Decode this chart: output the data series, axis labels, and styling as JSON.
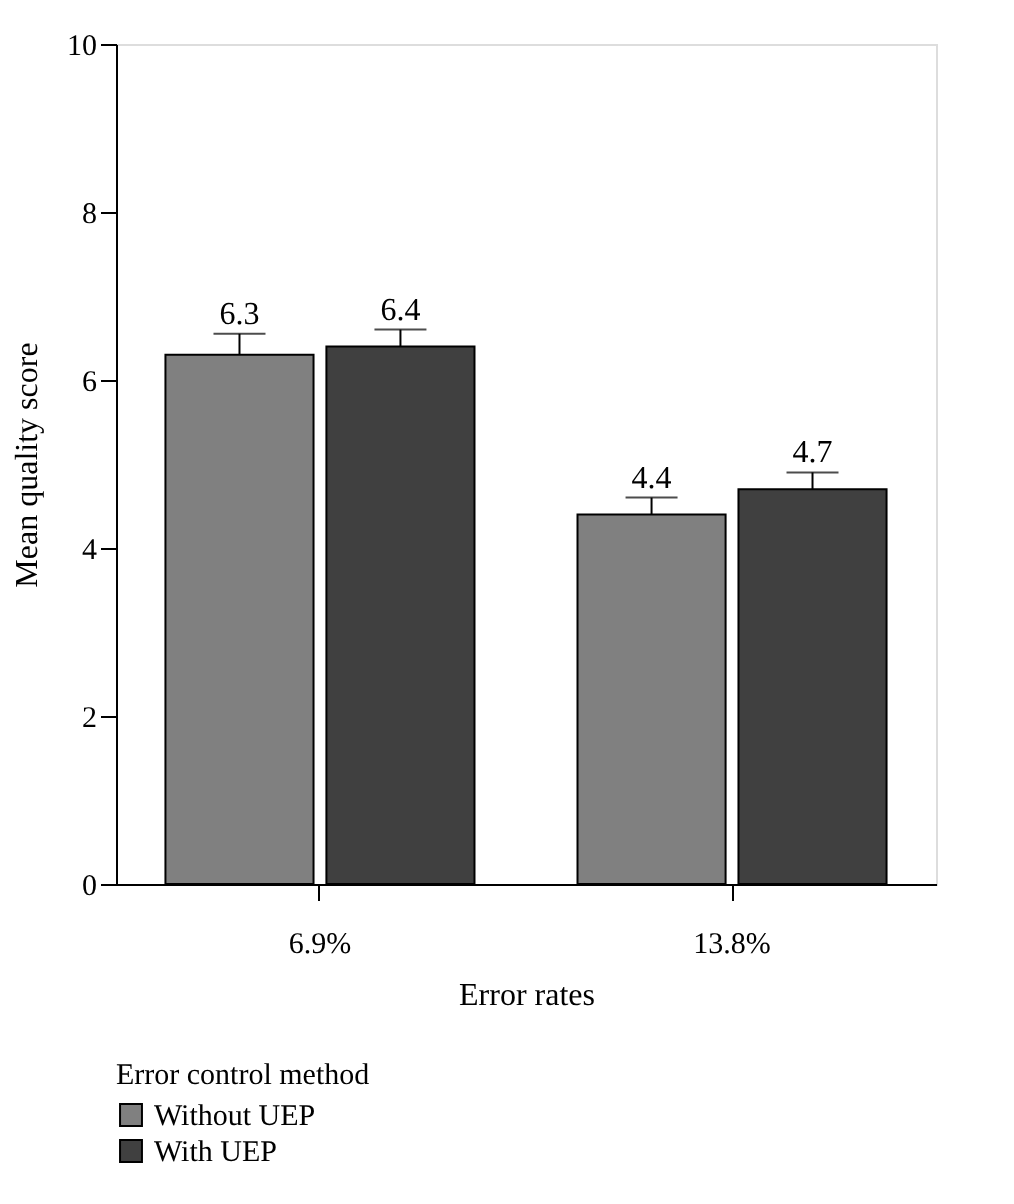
{
  "chart_data": {
    "type": "bar",
    "xlabel": "Error rates",
    "ylabel": "Mean quality score",
    "legend_title": "Error control method",
    "categories": [
      "6.9%",
      "13.8%"
    ],
    "series": [
      {
        "name": "Without UEP",
        "color": "#808080",
        "values": [
          6.3,
          4.4
        ],
        "errors": [
          [
            6.3,
            6.55
          ],
          [
            4.4,
            4.6
          ]
        ]
      },
      {
        "name": "With UEP",
        "color": "#404040",
        "values": [
          6.4,
          4.7
        ],
        "errors": [
          [
            6.4,
            6.6
          ],
          [
            4.7,
            4.9
          ]
        ]
      }
    ],
    "ylim": [
      0,
      10
    ],
    "yticks": [
      0,
      2,
      4,
      6,
      8,
      10
    ],
    "data_labels": true,
    "grid": false,
    "legend": "bottom left"
  }
}
